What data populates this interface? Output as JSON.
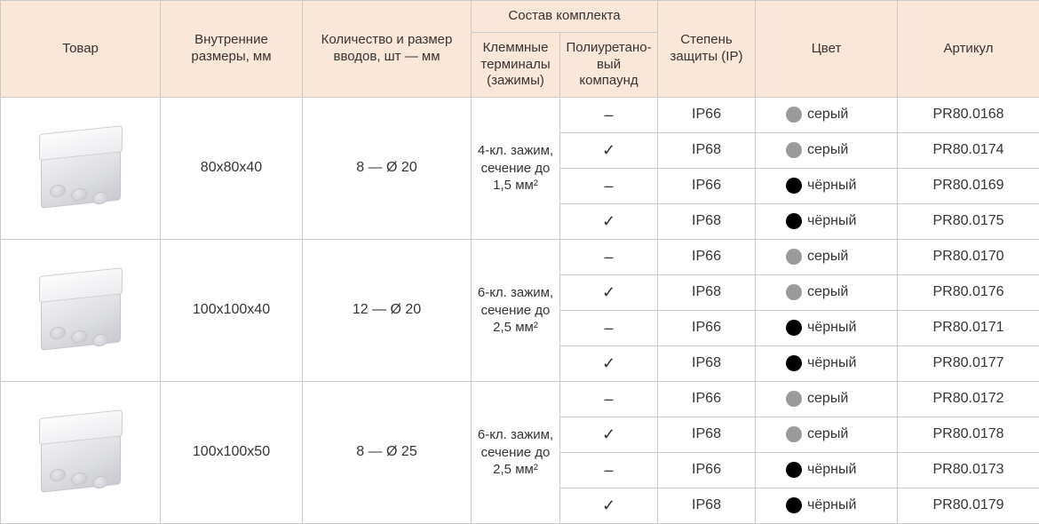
{
  "columns": {
    "product": "Товар",
    "dims": "Внутренние\nразмеры, мм",
    "inlets": "Количество и размер\nвводов, шт — мм",
    "kit_parent": "Состав комплекта",
    "kit_clamps": "Клеммные\nтерминалы\n(зажимы)",
    "kit_compound": "Полиуретано-\nвый компаунд",
    "ip": "Степень\nзащиты (IP)",
    "color": "Цвет",
    "article": "Артикул"
  },
  "col_widths": {
    "product": 180,
    "dims": 160,
    "inlets": 190,
    "kit_clamps": 100,
    "kit_compound": 110,
    "ip": 110,
    "color": 160,
    "article": 160
  },
  "colors": {
    "header_bg": "#fbe7d7",
    "border": "#c9c9c9",
    "text": "#333333",
    "swatch_grey": "#9a9a9a",
    "swatch_black": "#000000"
  },
  "font_sizes": {
    "header": 15,
    "body": 16,
    "clamp": 15
  },
  "groups": [
    {
      "dims": "80x80x40",
      "inlets": "8 — Ø 20",
      "clamp": "4-кл. зажим,\nсечение до\n1,5 мм²",
      "rows": [
        {
          "compound": "–",
          "ip": "IP66",
          "color_key": "grey",
          "color_label": "серый",
          "article": "PR80.0168"
        },
        {
          "compound": "✓",
          "ip": "IP68",
          "color_key": "grey",
          "color_label": "серый",
          "article": "PR80.0174"
        },
        {
          "compound": "–",
          "ip": "IP66",
          "color_key": "black",
          "color_label": "чёрный",
          "article": "PR80.0169"
        },
        {
          "compound": "✓",
          "ip": "IP68",
          "color_key": "black",
          "color_label": "чёрный",
          "article": "PR80.0175"
        }
      ]
    },
    {
      "dims": "100x100x40",
      "inlets": "12 — Ø 20",
      "clamp": "6-кл. зажим,\nсечение до\n2,5 мм²",
      "rows": [
        {
          "compound": "–",
          "ip": "IP66",
          "color_key": "grey",
          "color_label": "серый",
          "article": "PR80.0170"
        },
        {
          "compound": "✓",
          "ip": "IP68",
          "color_key": "grey",
          "color_label": "серый",
          "article": "PR80.0176"
        },
        {
          "compound": "–",
          "ip": "IP66",
          "color_key": "black",
          "color_label": "чёрный",
          "article": "PR80.0171"
        },
        {
          "compound": "✓",
          "ip": "IP68",
          "color_key": "black",
          "color_label": "чёрный",
          "article": "PR80.0177"
        }
      ]
    },
    {
      "dims": "100x100x50",
      "inlets": "8 — Ø 25",
      "clamp": "6-кл. зажим,\nсечение до\n2,5 мм²",
      "rows": [
        {
          "compound": "–",
          "ip": "IP66",
          "color_key": "grey",
          "color_label": "серый",
          "article": "PR80.0172"
        },
        {
          "compound": "✓",
          "ip": "IP68",
          "color_key": "grey",
          "color_label": "серый",
          "article": "PR80.0178"
        },
        {
          "compound": "–",
          "ip": "IP66",
          "color_key": "black",
          "color_label": "чёрный",
          "article": "PR80.0173"
        },
        {
          "compound": "✓",
          "ip": "IP68",
          "color_key": "black",
          "color_label": "чёрный",
          "article": "PR80.0179"
        }
      ]
    }
  ]
}
